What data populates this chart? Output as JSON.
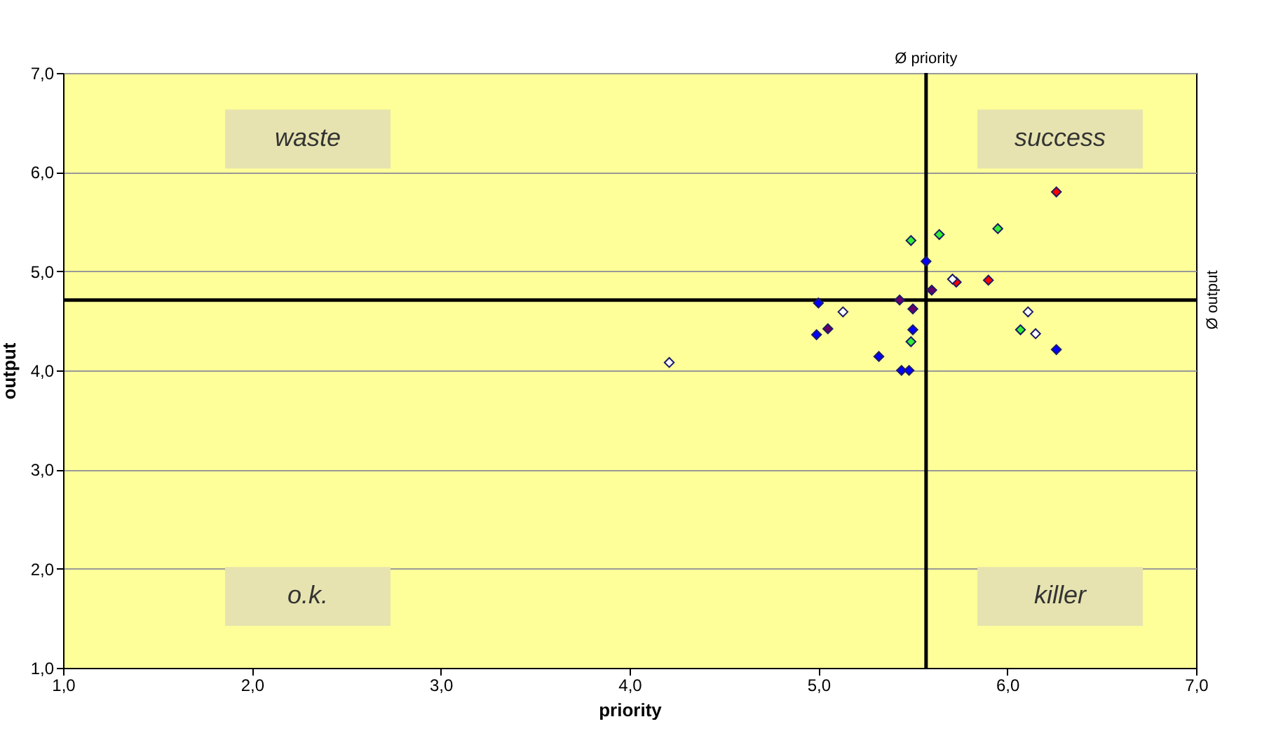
{
  "chart_data": {
    "type": "scatter",
    "xlabel": "priority",
    "ylabel": "output",
    "xlim": [
      1,
      7
    ],
    "ylim": [
      1,
      7
    ],
    "xticks": [
      {
        "value": 1,
        "label": "1,0"
      },
      {
        "value": 2,
        "label": "2,0"
      },
      {
        "value": 3,
        "label": "3,0"
      },
      {
        "value": 4,
        "label": "4,0"
      },
      {
        "value": 5,
        "label": "5,0"
      },
      {
        "value": 6,
        "label": "6,0"
      },
      {
        "value": 7,
        "label": "7,0"
      }
    ],
    "yticks": [
      {
        "value": 1,
        "label": "1,0"
      },
      {
        "value": 2,
        "label": "2,0"
      },
      {
        "value": 3,
        "label": "3,0"
      },
      {
        "value": 4,
        "label": "4,0"
      },
      {
        "value": 5,
        "label": "5,0"
      },
      {
        "value": 6,
        "label": "6,0"
      },
      {
        "value": 7,
        "label": "7,0"
      }
    ],
    "grid": "y",
    "marker": "diamond",
    "series": [
      {
        "color": "#ff0000",
        "x": [
          6.26,
          5.73,
          5.9
        ],
        "values": [
          5.8,
          4.89,
          4.91
        ]
      },
      {
        "color": "#33ee33",
        "x": [
          5.49,
          5.64,
          5.95,
          6.07,
          5.49
        ],
        "values": [
          5.31,
          5.37,
          5.43,
          4.41,
          4.29
        ]
      },
      {
        "color": "#0000ff",
        "x": [
          5.57,
          5.0,
          4.99,
          5.5,
          5.32,
          5.44,
          5.48,
          6.26
        ],
        "values": [
          5.1,
          4.68,
          4.36,
          4.41,
          4.14,
          4.0,
          4.0,
          4.21
        ]
      },
      {
        "color": "#660066",
        "x": [
          5.6,
          5.43,
          5.5,
          5.05
        ],
        "values": [
          4.81,
          4.71,
          4.62,
          4.42
        ]
      },
      {
        "color": "#ffffff",
        "x": [
          4.21,
          5.13,
          5.71,
          6.11,
          6.15
        ],
        "values": [
          4.08,
          4.59,
          4.92,
          4.59,
          4.37
        ]
      }
    ],
    "ref_lines": [
      {
        "axis": "x",
        "value": 5.57,
        "label": "Ø priority"
      },
      {
        "axis": "y",
        "value": 4.71,
        "label": "Ø output"
      }
    ],
    "annotations": [
      "waste",
      "success",
      "o.k.",
      "killer"
    ]
  }
}
